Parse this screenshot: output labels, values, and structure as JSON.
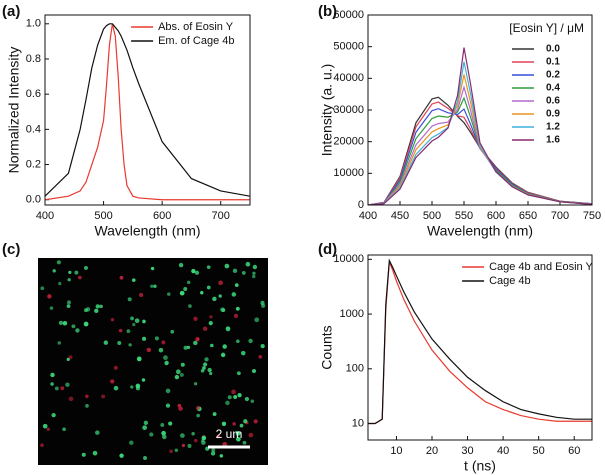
{
  "chart_data": [
    {
      "type": "line",
      "panel_label": "(a)",
      "xlabel": "Wavelength (nm)",
      "ylabel": "Normalized Intensity",
      "xlim": [
        400,
        750
      ],
      "ylim": [
        -0.03,
        1.05
      ],
      "xticks": [
        400,
        500,
        600,
        700
      ],
      "yticks": [
        {
          "value": 0,
          "label": "0.0"
        },
        0.2,
        0.4,
        0.6,
        0.8,
        {
          "value": 1,
          "label": "1.0"
        }
      ],
      "legend": "upper right",
      "x": [
        400,
        440,
        460,
        470,
        480,
        490,
        500,
        505,
        510,
        515,
        520,
        525,
        530,
        535,
        540,
        550,
        560,
        600,
        650,
        700,
        750
      ],
      "series": [
        {
          "name": "Abs. of Eosin Y",
          "color": "#e8392f",
          "values": [
            0,
            0.02,
            0.05,
            0.1,
            0.2,
            0.3,
            0.45,
            0.65,
            0.88,
            1.0,
            0.93,
            0.7,
            0.4,
            0.2,
            0.08,
            0.02,
            0.01,
            0,
            0,
            0,
            0
          ]
        },
        {
          "name": "Em. of Cage 4b",
          "color": "#111111",
          "values": [
            0.02,
            0.15,
            0.4,
            0.57,
            0.75,
            0.88,
            0.97,
            0.99,
            1.0,
            1.0,
            0.98,
            0.96,
            0.93,
            0.89,
            0.85,
            0.75,
            0.66,
            0.33,
            0.12,
            0.05,
            0.02
          ]
        }
      ]
    },
    {
      "type": "line",
      "panel_label": "(b)",
      "xlabel": "Wavelength (nm)",
      "ylabel": "Intensity (a. u.)",
      "xlim": [
        400,
        750
      ],
      "ylim": [
        0,
        60000
      ],
      "xticks": [
        400,
        450,
        500,
        550,
        600,
        650,
        700,
        750
      ],
      "yticks": [
        0,
        10000,
        20000,
        30000,
        40000,
        50000,
        60000
      ],
      "legend": "upper right",
      "legend_title": "[Eosin Y] / μM",
      "x": [
        400,
        425,
        450,
        475,
        500,
        510,
        525,
        540,
        550,
        560,
        575,
        600,
        625,
        650,
        700,
        750
      ],
      "series": [
        {
          "name": "0.0",
          "color": "#333333",
          "values": [
            0,
            800,
            9000,
            26000,
            33500,
            34000,
            31500,
            28000,
            26000,
            23000,
            18000,
            12000,
            7000,
            4000,
            1200,
            400
          ]
        },
        {
          "name": "0.1",
          "color": "#e0405a",
          "values": [
            0,
            800,
            8600,
            24700,
            31900,
            32500,
            30500,
            28200,
            27700,
            24000,
            17900,
            11700,
            6800,
            3900,
            1200,
            400
          ]
        },
        {
          "name": "0.2",
          "color": "#3a4fd6",
          "values": [
            0,
            700,
            7900,
            23000,
            29800,
            30400,
            29100,
            28600,
            30300,
            25600,
            17800,
            11400,
            6600,
            3700,
            1100,
            400
          ]
        },
        {
          "name": "0.4",
          "color": "#2e9e3a",
          "values": [
            0,
            600,
            7200,
            21000,
            27300,
            28100,
            27700,
            29400,
            33800,
            27900,
            17900,
            11000,
            6300,
            3600,
            1100,
            300
          ]
        },
        {
          "name": "0.6",
          "color": "#b36ad1",
          "values": [
            0,
            600,
            6500,
            19000,
            24900,
            25700,
            26200,
            30200,
            37200,
            30100,
            18000,
            10600,
            6000,
            3400,
            1000,
            300
          ]
        },
        {
          "name": "0.9",
          "color": "#e8961e",
          "values": [
            0,
            500,
            5900,
            17500,
            23100,
            24100,
            25300,
            31500,
            41200,
            32700,
            18400,
            10500,
            5900,
            3300,
            1000,
            300
          ]
        },
        {
          "name": "1.2",
          "color": "#3fb0d8",
          "values": [
            0,
            500,
            5400,
            16000,
            21300,
            22400,
            24500,
            32800,
            45200,
            35400,
            18800,
            10400,
            5800,
            3200,
            1000,
            200
          ]
        },
        {
          "name": "1.6",
          "color": "#8a2a6e",
          "values": [
            0,
            400,
            5000,
            15000,
            20200,
            21400,
            24300,
            34700,
            49700,
            38500,
            19600,
            10500,
            5800,
            3200,
            1000,
            200
          ]
        }
      ]
    },
    {
      "type": "image",
      "panel_label": "(c)",
      "scale_bar": "2 um"
    },
    {
      "type": "line",
      "panel_label": "(d)",
      "xlabel": "t (ns)",
      "ylabel": "Counts",
      "log_y": true,
      "xlim": [
        2,
        65
      ],
      "ylim": [
        5,
        12000
      ],
      "xticks": [
        10,
        20,
        30,
        40,
        50,
        60
      ],
      "yticks": [
        10,
        100,
        1000,
        10000
      ],
      "legend": "upper right",
      "x": [
        2,
        4,
        6,
        7,
        8,
        9,
        10,
        12,
        15,
        20,
        25,
        30,
        35,
        40,
        45,
        50,
        55,
        60,
        65
      ],
      "series": [
        {
          "name": "Cage 4b and Eosin Y",
          "color": "#e8392f",
          "values": [
            10,
            10,
            12,
            1200,
            9000,
            6200,
            4000,
            1900,
            750,
            220,
            90,
            45,
            25,
            18,
            14,
            12,
            11,
            11,
            11
          ]
        },
        {
          "name": "Cage 4b",
          "color": "#111111",
          "values": [
            10,
            10,
            12,
            1500,
            9500,
            7000,
            5000,
            2600,
            1100,
            350,
            150,
            70,
            40,
            25,
            18,
            15,
            13,
            12,
            12
          ]
        }
      ]
    }
  ]
}
